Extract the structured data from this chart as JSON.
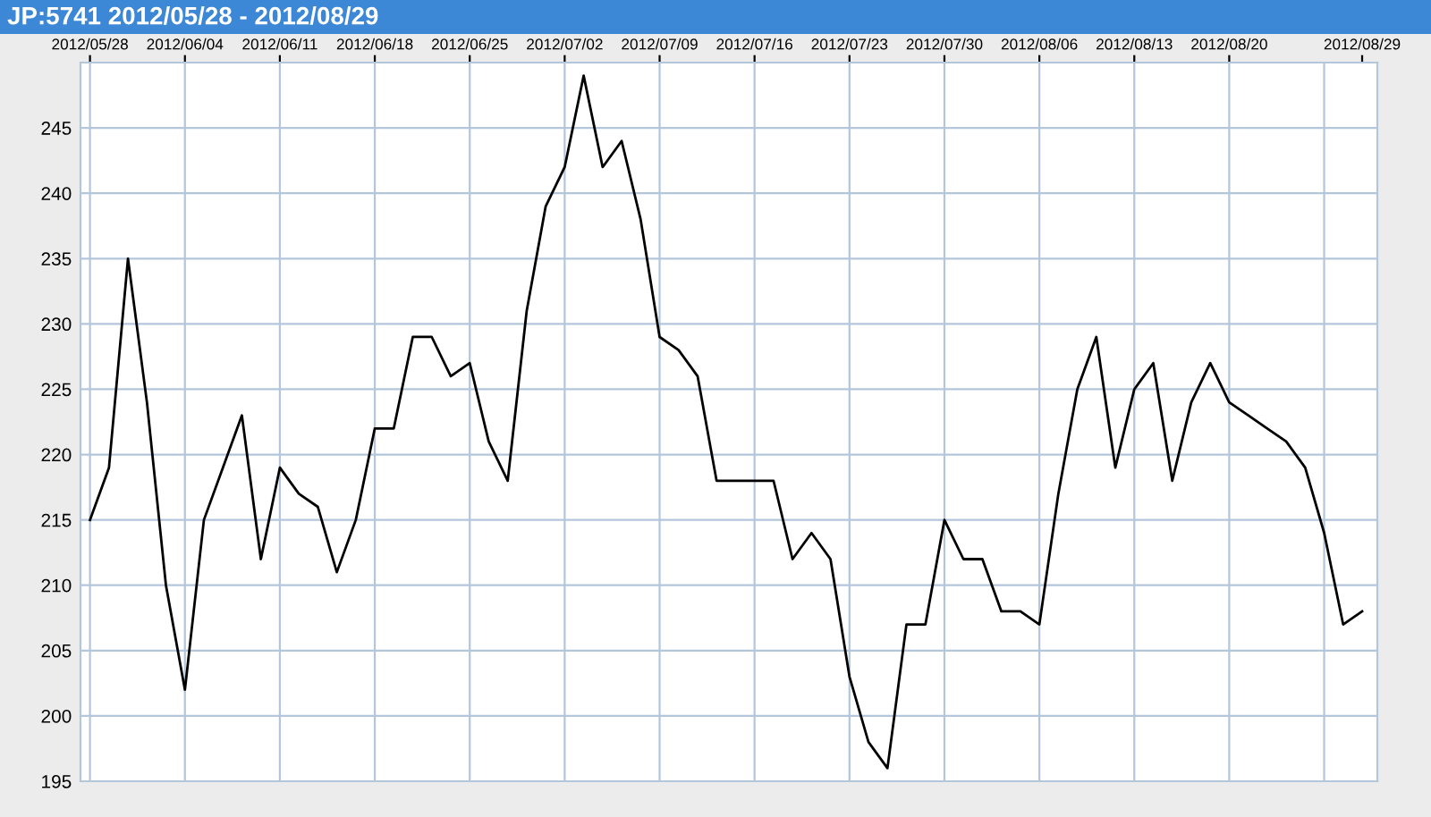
{
  "chart_data": {
    "type": "line",
    "title": "JP:5741 2012/05/28 - 2012/08/29",
    "categories": [
      "2012/05/28",
      null,
      null,
      null,
      null,
      "2012/06/04",
      null,
      null,
      null,
      null,
      "2012/06/11",
      null,
      null,
      null,
      null,
      "2012/06/18",
      null,
      null,
      null,
      null,
      "2012/06/25",
      null,
      null,
      null,
      null,
      "2012/07/02",
      null,
      null,
      null,
      null,
      "2012/07/09",
      null,
      null,
      null,
      null,
      "2012/07/16",
      null,
      null,
      null,
      null,
      "2012/07/23",
      null,
      null,
      null,
      null,
      "2012/07/30",
      null,
      null,
      null,
      null,
      "2012/08/06",
      null,
      null,
      null,
      null,
      "2012/08/13",
      null,
      null,
      null,
      null,
      "2012/08/20",
      null,
      null,
      null,
      null,
      null,
      null,
      "2012/08/29"
    ],
    "series": [
      {
        "color": "#000000",
        "values": [
          215,
          219,
          235,
          224,
          210,
          202,
          215,
          219,
          223,
          212,
          219,
          217,
          216,
          211,
          215,
          222,
          222,
          229,
          229,
          226,
          227,
          221,
          218,
          231,
          239,
          242,
          249,
          242,
          244,
          238,
          229,
          228,
          226,
          218,
          218,
          218,
          218,
          212,
          214,
          212,
          203,
          198,
          196,
          207,
          207,
          215,
          212,
          212,
          208,
          208,
          207,
          217,
          225,
          229,
          219,
          225,
          227,
          218,
          224,
          227,
          224,
          223,
          222,
          221,
          219,
          214,
          207,
          208
        ]
      }
    ],
    "ylim": [
      195,
      250
    ],
    "yticks": [
      195,
      200,
      205,
      210,
      215,
      220,
      225,
      230,
      235,
      240,
      245
    ],
    "grid": true,
    "legend": false
  }
}
